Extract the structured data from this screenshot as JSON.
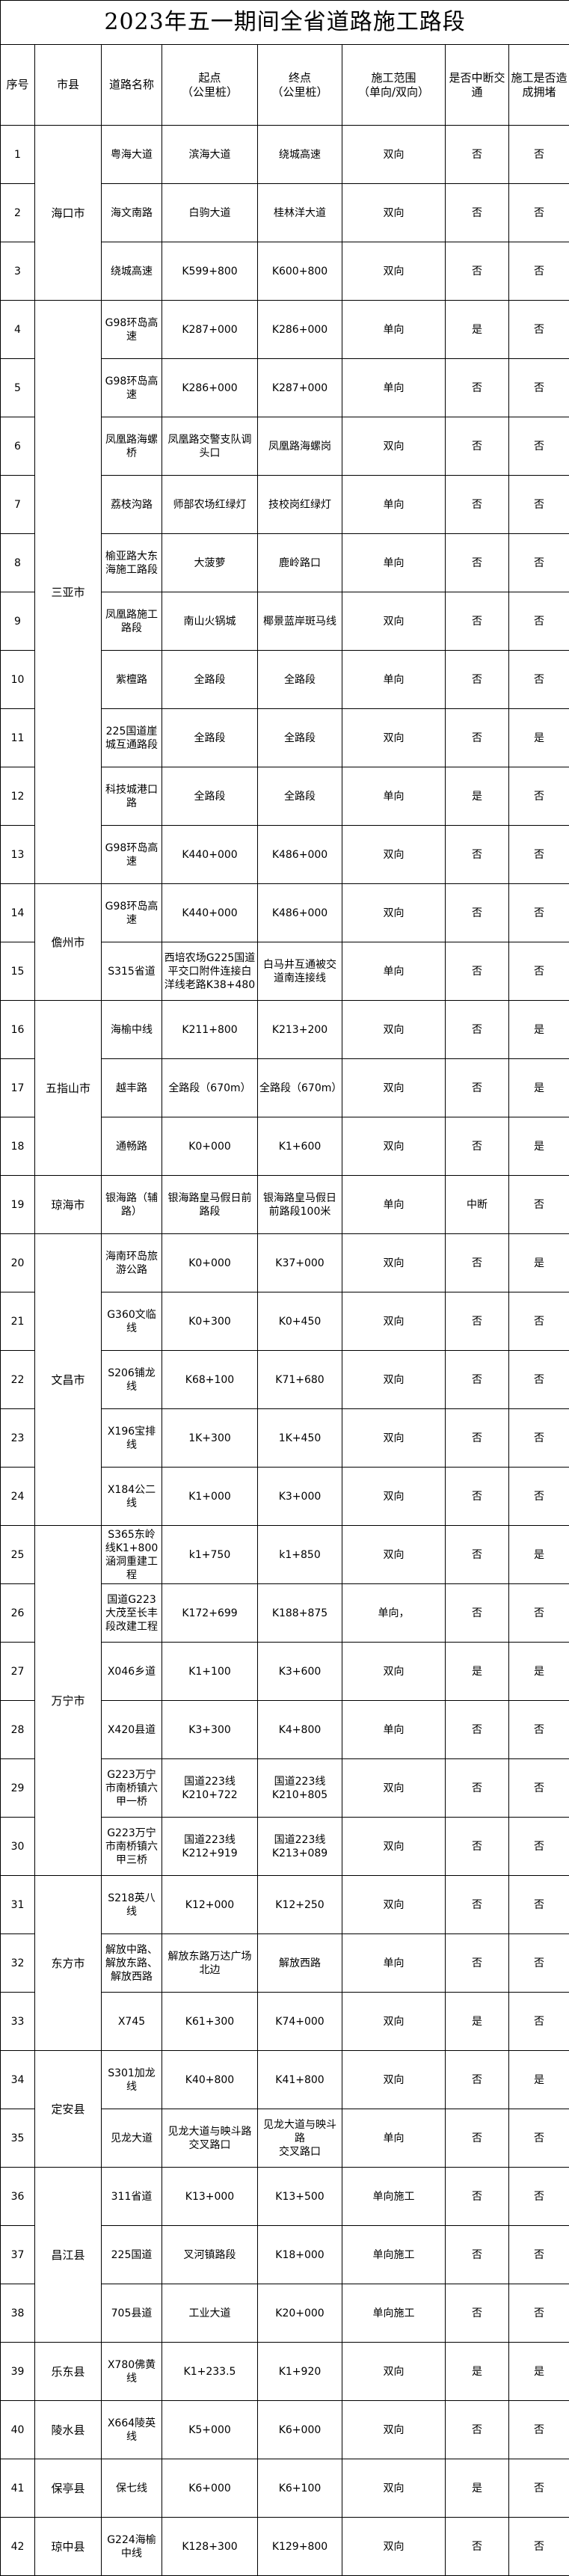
{
  "title": "2023年五一期间全省道路施工路段",
  "headers": [
    "序号",
    "市县",
    "道路名称",
    "起点\n（公里桩）",
    "终点\n（公里桩）",
    "施工范围\n（单向/双向）",
    "是否中断交通",
    "施工是否造成拥堵"
  ],
  "groups": [
    {
      "city": "海口市",
      "count": 3
    },
    {
      "city": "三亚市",
      "count": 10
    },
    {
      "city": "儋州市",
      "count": 2
    },
    {
      "city": "五指山市",
      "count": 3
    },
    {
      "city": "琼海市",
      "count": 1
    },
    {
      "city": "文昌市",
      "count": 5
    },
    {
      "city": "万宁市",
      "count": 6
    },
    {
      "city": "东方市",
      "count": 3
    },
    {
      "city": "定安县",
      "count": 2
    },
    {
      "city": "昌江县",
      "count": 3
    },
    {
      "city": "乐东县",
      "count": 1
    },
    {
      "city": "陵水县",
      "count": 1
    },
    {
      "city": "保亭县",
      "count": 1
    },
    {
      "city": "琼中县",
      "count": 1
    }
  ],
  "rows": [
    {
      "no": "1",
      "road": "粤海大道",
      "start": "滨海大道",
      "end": "绕城高速",
      "scope": "双向",
      "interrupt": "否",
      "congestion": "否"
    },
    {
      "no": "2",
      "road": "海文南路",
      "start": "白驹大道",
      "end": "桂林洋大道",
      "scope": "双向",
      "interrupt": "否",
      "congestion": "否"
    },
    {
      "no": "3",
      "road": "绕城高速",
      "start": "K599+800",
      "end": "K600+800",
      "scope": "双向",
      "interrupt": "否",
      "congestion": "否"
    },
    {
      "no": "4",
      "road": "G98环岛高速",
      "start": "K287+000",
      "end": "K286+000",
      "scope": "单向",
      "interrupt": "是",
      "congestion": "否"
    },
    {
      "no": "5",
      "road": "G98环岛高速",
      "start": "K286+000",
      "end": "K287+000",
      "scope": "单向",
      "interrupt": "否",
      "congestion": "否"
    },
    {
      "no": "6",
      "road": "凤凰路海螺桥",
      "start": "凤凰路交警支队调头口",
      "end": "凤凰路海螺岗",
      "scope": "双向",
      "interrupt": "否",
      "congestion": "否"
    },
    {
      "no": "7",
      "road": "荔枝沟路",
      "start": "师部农场红绿灯",
      "end": "技校岗红绿灯",
      "scope": "单向",
      "interrupt": "否",
      "congestion": "否"
    },
    {
      "no": "8",
      "road": "榆亚路大东海施工路段",
      "start": "大菠萝",
      "end": "鹿岭路口",
      "scope": "单向",
      "interrupt": "否",
      "congestion": "否"
    },
    {
      "no": "9",
      "road": "凤凰路施工路段",
      "start": "南山火锅城",
      "end": "椰景蓝岸斑马线",
      "scope": "双向",
      "interrupt": "否",
      "congestion": "否"
    },
    {
      "no": "10",
      "road": "紫檀路",
      "start": "全路段",
      "end": "全路段",
      "scope": "单向",
      "interrupt": "否",
      "congestion": "否"
    },
    {
      "no": "11",
      "road": "225国道崖城互通路段",
      "start": "全路段",
      "end": "全路段",
      "scope": "双向",
      "interrupt": "否",
      "congestion": "是"
    },
    {
      "no": "12",
      "road": "科技城港口路",
      "start": "全路段",
      "end": "全路段",
      "scope": "单向",
      "interrupt": "是",
      "congestion": "否"
    },
    {
      "no": "13",
      "road": "G98环岛高速",
      "start": "K440+000",
      "end": "K486+000",
      "scope": "双向",
      "interrupt": "否",
      "congestion": "否"
    },
    {
      "no": "14",
      "road": "G98环岛高速",
      "start": "K440+000",
      "end": "K486+000",
      "scope": "双向",
      "interrupt": "否",
      "congestion": "否"
    },
    {
      "no": "15",
      "road": "S315省道",
      "start": "西培农场G225国道平交口附件连接白洋线老路K38+480",
      "end": "白马井互通被交道南连接线",
      "scope": "单向",
      "interrupt": "否",
      "congestion": "否"
    },
    {
      "no": "16",
      "road": "海榆中线",
      "start": "K211+800",
      "end": "K213+200",
      "scope": "双向",
      "interrupt": "否",
      "congestion": "是"
    },
    {
      "no": "17",
      "road": "越丰路",
      "start": "全路段（670m）",
      "end": "全路段（670m）",
      "scope": "双向",
      "interrupt": "否",
      "congestion": "是"
    },
    {
      "no": "18",
      "road": "通畅路",
      "start": "K0+000",
      "end": "K1+600",
      "scope": "双向",
      "interrupt": "否",
      "congestion": "是"
    },
    {
      "no": "19",
      "road": "银海路（辅路）",
      "start": "银海路皇马假日前路段",
      "end": "银海路皇马假日前路段100米",
      "scope": "单向",
      "interrupt": "中断",
      "congestion": "否"
    },
    {
      "no": "20",
      "road": "海南环岛旅游公路",
      "start": "K0+000",
      "end": "K37+000",
      "scope": "双向",
      "interrupt": "否",
      "congestion": "是"
    },
    {
      "no": "21",
      "road": "G360文临线",
      "start": "K0+300",
      "end": "K0+450",
      "scope": "双向",
      "interrupt": "否",
      "congestion": "否"
    },
    {
      "no": "22",
      "road": "S206铺龙线",
      "start": "K68+100",
      "end": "K71+680",
      "scope": "双向",
      "interrupt": "否",
      "congestion": "否"
    },
    {
      "no": "23",
      "road": "X196宝排线",
      "start": "1K+300",
      "end": "1K+450",
      "scope": "双向",
      "interrupt": "否",
      "congestion": "否"
    },
    {
      "no": "24",
      "road": "X184公二线",
      "start": "K1+000",
      "end": "K3+000",
      "scope": "双向",
      "interrupt": "否",
      "congestion": "否"
    },
    {
      "no": "25",
      "road": "S365东岭线K1+800涵洞重建工程",
      "start": "k1+750",
      "end": "k1+850",
      "scope": "双向",
      "interrupt": "否",
      "congestion": "是"
    },
    {
      "no": "26",
      "road": "国道G223大茂至长丰段改建工程",
      "start": "K172+699",
      "end": "K188+875",
      "scope": "单向，",
      "interrupt": "否",
      "congestion": "否"
    },
    {
      "no": "27",
      "road": "X046乡道",
      "start": "K1+100",
      "end": "K3+600",
      "scope": "双向",
      "interrupt": "是",
      "congestion": "是"
    },
    {
      "no": "28",
      "road": "X420县道",
      "start": "K3+300",
      "end": "K4+800",
      "scope": "单向",
      "interrupt": "否",
      "congestion": "否"
    },
    {
      "no": "29",
      "road": "G223万宁市南桥镇六甲一桥",
      "start": "国道223线\nK210+722",
      "end": "国道223线\nK210+805",
      "scope": "双向",
      "interrupt": "否",
      "congestion": "否"
    },
    {
      "no": "30",
      "road": "G223万宁市南桥镇六甲三桥",
      "start": "国道223线\nK212+919",
      "end": "国道223线\nK213+089",
      "scope": "双向",
      "interrupt": "否",
      "congestion": "否"
    },
    {
      "no": "31",
      "road": "S218英八线",
      "start": "K12+000",
      "end": "K12+250",
      "scope": "双向",
      "interrupt": "否",
      "congestion": "否"
    },
    {
      "no": "32",
      "road": "解放中路、解放东路、解放西路",
      "start": "解放东路万达广场北边",
      "end": "解放西路",
      "scope": "单向",
      "interrupt": "否",
      "congestion": "否"
    },
    {
      "no": "33",
      "road": "X745",
      "start": "K61+300",
      "end": "K74+000",
      "scope": "双向",
      "interrupt": "是",
      "congestion": "否"
    },
    {
      "no": "34",
      "road": "S301加龙线",
      "start": "K40+800",
      "end": "K41+800",
      "scope": "双向",
      "interrupt": "否",
      "congestion": "是"
    },
    {
      "no": "35",
      "road": "见龙大道",
      "start": "见龙大道与映斗路\n交叉路口",
      "end": "见龙大道与映斗路\n交叉路口",
      "scope": "单向",
      "interrupt": "否",
      "congestion": "否"
    },
    {
      "no": "36",
      "road": "311省道",
      "start": "K13+000",
      "end": "K13+500",
      "scope": "单向施工",
      "interrupt": "否",
      "congestion": "否"
    },
    {
      "no": "37",
      "road": "225国道",
      "start": "叉河镇路段",
      "end": "K18+000",
      "scope": "单向施工",
      "interrupt": "否",
      "congestion": "否"
    },
    {
      "no": "38",
      "road": "705县道",
      "start": "工业大道",
      "end": "K20+000",
      "scope": "单向施工",
      "interrupt": "否",
      "congestion": "否"
    },
    {
      "no": "39",
      "road": "X780佛黄线",
      "start": "K1+233.5",
      "end": "K1+920",
      "scope": "双向",
      "interrupt": "是",
      "congestion": "是"
    },
    {
      "no": "40",
      "road": "X664陵英线",
      "start": "K5+000",
      "end": "K6+000",
      "scope": "双向",
      "interrupt": "否",
      "congestion": "否"
    },
    {
      "no": "41",
      "road": "保七线",
      "start": "K6+000",
      "end": "K6+100",
      "scope": "双向",
      "interrupt": "是",
      "congestion": "否"
    },
    {
      "no": "42",
      "road": "G224海榆中线",
      "start": "K128+300",
      "end": "K129+800",
      "scope": "双向",
      "interrupt": "否",
      "congestion": "否"
    }
  ]
}
